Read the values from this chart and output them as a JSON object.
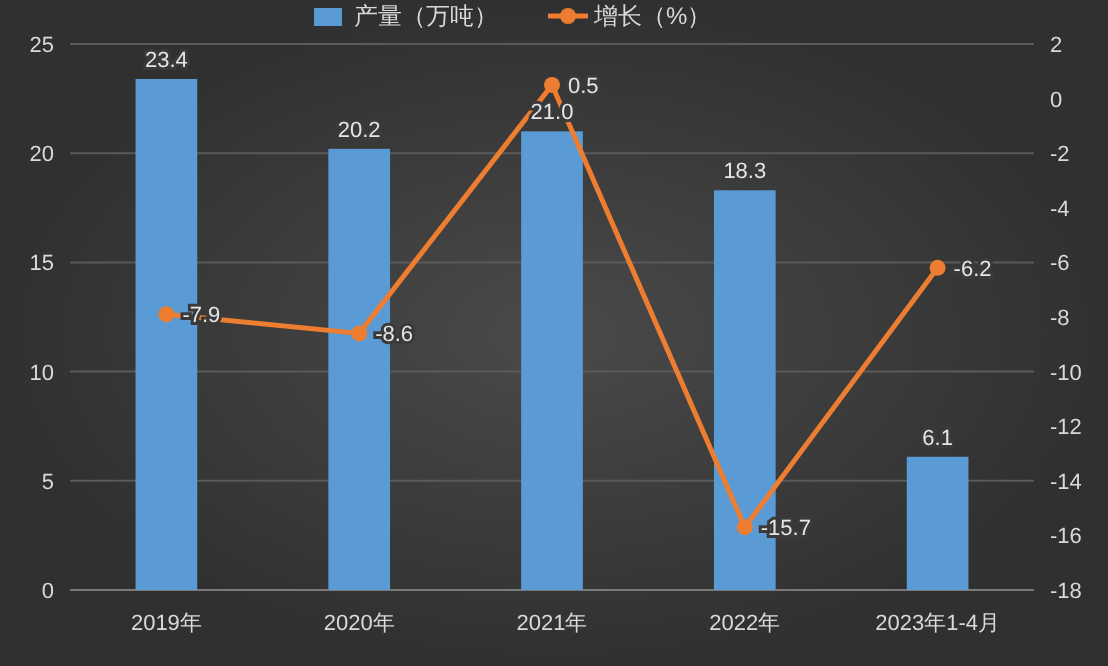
{
  "chart_data": {
    "type": "bar",
    "categories": [
      "2019年",
      "2020年",
      "2021年",
      "2022年",
      "2023年1-4月"
    ],
    "series": [
      {
        "name": "产量（万吨）",
        "color": "#5b9bd5",
        "values": [
          23.4,
          20.2,
          21.0,
          18.3,
          6.1
        ],
        "value_labels": [
          "23.4",
          "20.2",
          "21.0",
          "18.3",
          "6.1"
        ]
      },
      {
        "name": "增长（%）",
        "type": "line",
        "axis": "y2",
        "color": "#ed7d31",
        "marker": "circle",
        "values": [
          -7.9,
          -8.6,
          0.5,
          -15.7,
          -6.2
        ]
      }
    ],
    "ylim": [
      0,
      25
    ],
    "yticks": [
      0,
      5,
      10,
      15,
      20,
      25
    ],
    "y2lim": [
      -18,
      2
    ],
    "y2ticks": [
      -18,
      -16,
      -14,
      -12,
      -10,
      -8,
      -6,
      -4,
      -2,
      0,
      2
    ],
    "grid": "y",
    "legend": "top",
    "data_labels": true
  }
}
